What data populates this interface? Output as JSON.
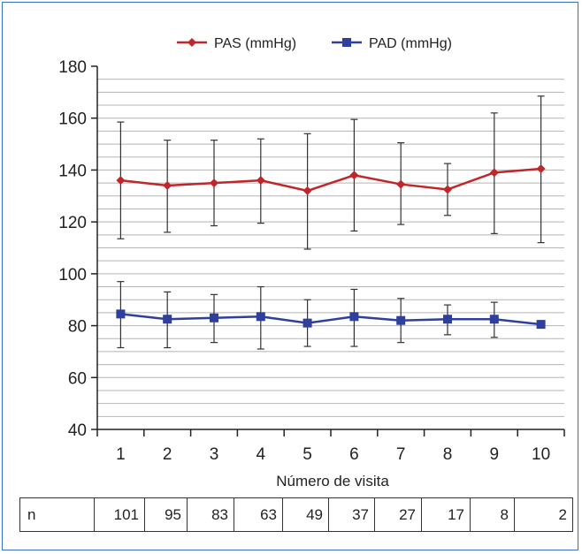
{
  "chart_data": {
    "type": "line",
    "title": "",
    "xlabel": "Número de visita",
    "ylabel": "",
    "ylim": [
      40,
      180
    ],
    "yticks": [
      40,
      60,
      80,
      100,
      120,
      140,
      160,
      180
    ],
    "categories": [
      "1",
      "2",
      "3",
      "4",
      "5",
      "6",
      "7",
      "8",
      "9",
      "10"
    ],
    "legend_position": "top-center",
    "grid": true,
    "series": [
      {
        "name": "PAS (mmHg)",
        "color": "#c0262a",
        "marker": "diamond",
        "values": [
          136,
          134,
          135,
          136,
          132,
          138,
          134.5,
          132.5,
          139,
          140.5
        ],
        "error_low": [
          113.5,
          116,
          118.5,
          119.5,
          109.5,
          116.5,
          119,
          122.5,
          115.5,
          112
        ],
        "error_high": [
          158.5,
          151.5,
          151.5,
          152,
          154,
          159.5,
          150.5,
          142.5,
          162,
          168.5
        ]
      },
      {
        "name": "PAD (mmHg)",
        "color": "#2f3f9e",
        "marker": "square",
        "values": [
          84.5,
          82.5,
          83,
          83.5,
          81,
          83.5,
          82,
          82.5,
          82.5,
          80.5
        ],
        "error_low": [
          71.5,
          71.5,
          73.5,
          71,
          72,
          72,
          73.5,
          76.5,
          75.5,
          80.5
        ],
        "error_high": [
          97,
          93,
          92,
          95,
          90,
          94,
          90.5,
          88,
          89,
          80.5
        ]
      }
    ]
  },
  "n_table": {
    "label": "n",
    "values": [
      "101",
      "95",
      "83",
      "63",
      "49",
      "37",
      "27",
      "17",
      "8",
      "2"
    ]
  }
}
